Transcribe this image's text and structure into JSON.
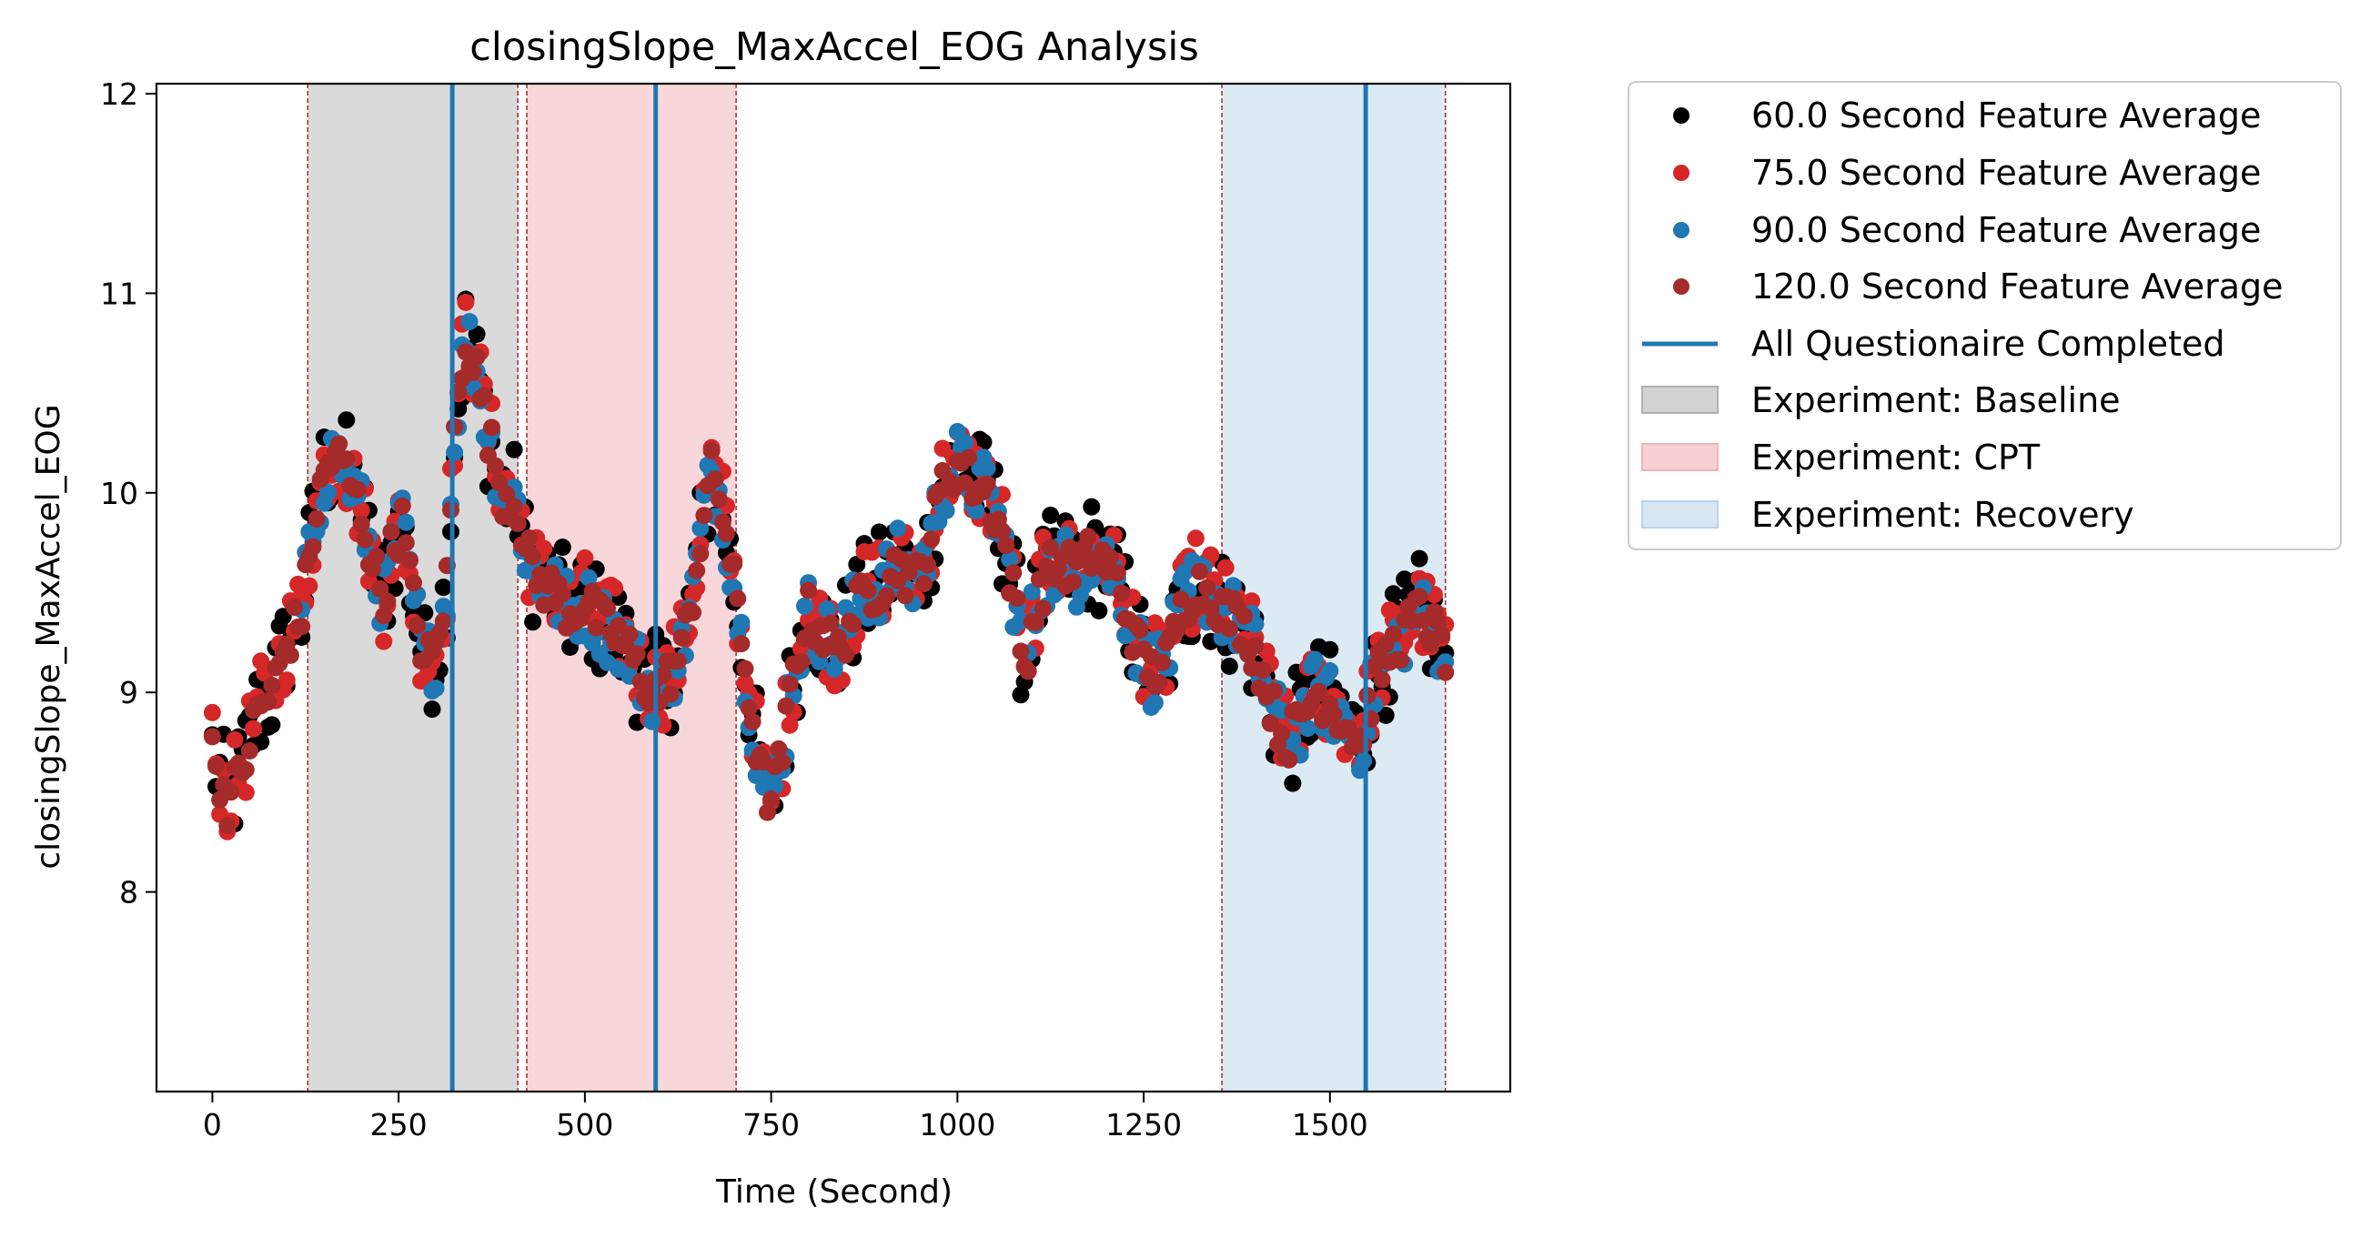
{
  "chart_data": {
    "type": "scatter",
    "title": "closingSlope_MaxAccel_EOG Analysis",
    "xlabel": "Time (Second)",
    "ylabel": "closingSlope_MaxAccel_EOG",
    "xlim": [
      -75,
      1742
    ],
    "ylim": [
      7.0,
      12.05
    ],
    "xticks": [
      0,
      250,
      500,
      750,
      1000,
      1250,
      1500
    ],
    "yticks": [
      8,
      9,
      10,
      11,
      12
    ],
    "grid": false,
    "legend_position": "outside-top-right",
    "series_style": [
      {
        "name": "60.0 Second Feature Average",
        "color": "#000000"
      },
      {
        "name": "75.0 Second Feature Average",
        "color": "#d62728"
      },
      {
        "name": "90.0 Second Feature Average",
        "color": "#1f77b4"
      },
      {
        "name": "120.0 Second Feature Average",
        "color": "#a52a2a"
      }
    ],
    "keypoints": [
      [
        0,
        8.7
      ],
      [
        20,
        8.45
      ],
      [
        40,
        8.6
      ],
      [
        60,
        8.9
      ],
      [
        80,
        9.0
      ],
      [
        100,
        9.25
      ],
      [
        120,
        9.4
      ],
      [
        135,
        9.8
      ],
      [
        150,
        10.1
      ],
      [
        165,
        10.2
      ],
      [
        180,
        10.1
      ],
      [
        200,
        9.9
      ],
      [
        215,
        9.65
      ],
      [
        230,
        9.45
      ],
      [
        240,
        9.7
      ],
      [
        255,
        9.85
      ],
      [
        270,
        9.45
      ],
      [
        285,
        9.15
      ],
      [
        300,
        9.2
      ],
      [
        315,
        9.55
      ],
      [
        325,
        10.3
      ],
      [
        340,
        10.8
      ],
      [
        355,
        10.6
      ],
      [
        370,
        10.3
      ],
      [
        390,
        10.0
      ],
      [
        410,
        9.95
      ],
      [
        420,
        9.7
      ],
      [
        440,
        9.55
      ],
      [
        460,
        9.5
      ],
      [
        480,
        9.4
      ],
      [
        500,
        9.45
      ],
      [
        520,
        9.35
      ],
      [
        540,
        9.3
      ],
      [
        560,
        9.2
      ],
      [
        580,
        9.05
      ],
      [
        600,
        9.0
      ],
      [
        615,
        9.1
      ],
      [
        630,
        9.2
      ],
      [
        645,
        9.5
      ],
      [
        660,
        9.9
      ],
      [
        670,
        10.1
      ],
      [
        680,
        10.0
      ],
      [
        690,
        9.8
      ],
      [
        705,
        9.4
      ],
      [
        720,
        9.0
      ],
      [
        735,
        8.6
      ],
      [
        750,
        8.45
      ],
      [
        765,
        8.7
      ],
      [
        780,
        9.1
      ],
      [
        800,
        9.4
      ],
      [
        820,
        9.3
      ],
      [
        840,
        9.2
      ],
      [
        860,
        9.4
      ],
      [
        880,
        9.5
      ],
      [
        900,
        9.55
      ],
      [
        920,
        9.65
      ],
      [
        940,
        9.55
      ],
      [
        960,
        9.7
      ],
      [
        980,
        10.05
      ],
      [
        1000,
        10.15
      ],
      [
        1020,
        10.05
      ],
      [
        1040,
        10.0
      ],
      [
        1060,
        9.8
      ],
      [
        1080,
        9.4
      ],
      [
        1090,
        9.1
      ],
      [
        1100,
        9.35
      ],
      [
        1120,
        9.6
      ],
      [
        1140,
        9.65
      ],
      [
        1160,
        9.6
      ],
      [
        1180,
        9.7
      ],
      [
        1200,
        9.65
      ],
      [
        1220,
        9.5
      ],
      [
        1240,
        9.25
      ],
      [
        1260,
        9.1
      ],
      [
        1280,
        9.15
      ],
      [
        1300,
        9.4
      ],
      [
        1320,
        9.55
      ],
      [
        1340,
        9.5
      ],
      [
        1360,
        9.4
      ],
      [
        1380,
        9.35
      ],
      [
        1400,
        9.2
      ],
      [
        1420,
        8.95
      ],
      [
        1440,
        8.75
      ],
      [
        1460,
        8.85
      ],
      [
        1480,
        9.0
      ],
      [
        1500,
        8.95
      ],
      [
        1520,
        8.85
      ],
      [
        1540,
        8.75
      ],
      [
        1560,
        9.05
      ],
      [
        1580,
        9.2
      ],
      [
        1600,
        9.3
      ],
      [
        1620,
        9.4
      ],
      [
        1640,
        9.3
      ],
      [
        1655,
        9.2
      ]
    ],
    "series": [
      {
        "name": "60.0 Second Feature Average",
        "x_range": [
          0,
          1655
        ],
        "step": 5,
        "offset": 0.0,
        "amplitude": 0.28
      },
      {
        "name": "75.0 Second Feature Average",
        "x_range": [
          0,
          1655
        ],
        "step": 5,
        "offset": 0.02,
        "amplitude": 0.22
      },
      {
        "name": "90.0 Second Feature Average",
        "x_range": [
          120,
          1655
        ],
        "step": 5,
        "offset": 0.0,
        "amplitude": 0.18
      },
      {
        "name": "120.0 Second Feature Average",
        "x_range": [
          0,
          1655
        ],
        "step": 5,
        "offset": 0.0,
        "amplitude": 0.12
      }
    ],
    "questionnaire_lines": {
      "label": "All Questionaire Completed",
      "color": "#1f77b4",
      "x": [
        322,
        595,
        1548
      ]
    },
    "phases": [
      {
        "label": "Experiment: Baseline",
        "color": "#d3d3d3",
        "x_start": 128,
        "x_end": 410
      },
      {
        "label": "Experiment: CPT",
        "color": "#f7d0d3",
        "x_start": 422,
        "x_end": 703
      },
      {
        "label": "Experiment: Recovery",
        "color": "#d6e6f2",
        "x_start": 1355,
        "x_end": 1655
      }
    ],
    "phase_boundaries": {
      "color": "#a52a2a",
      "x": [
        128,
        410,
        422,
        703,
        1355,
        1655
      ]
    },
    "legend": [
      "60.0 Second Feature Average",
      "75.0 Second Feature Average",
      "90.0 Second Feature Average",
      "120.0 Second Feature Average",
      "All Questionaire Completed",
      "Experiment: Baseline",
      "Experiment: CPT",
      "Experiment: Recovery"
    ]
  }
}
